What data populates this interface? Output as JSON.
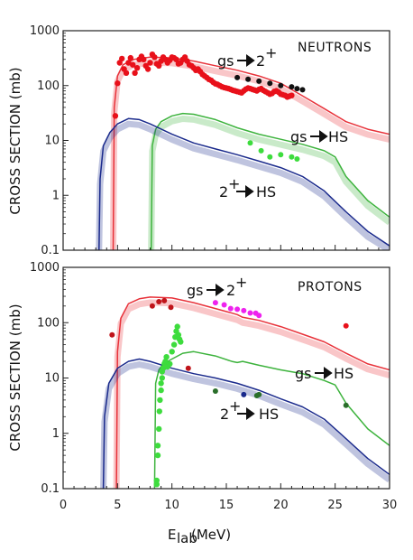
{
  "figure": {
    "ylabel": "CROSS SECTION (mb)",
    "xlabel_main": "E",
    "xlabel_sub": "lab",
    "xlabel_unit": " (MeV)",
    "x_ticks": [
      "0",
      "5",
      "10",
      "15",
      "20",
      "25",
      "30"
    ],
    "y_ticks": [
      "0.1",
      "1",
      "10",
      "100",
      "1000"
    ]
  },
  "chart_data": [
    {
      "type": "line",
      "panel_label": "NEUTRONS",
      "xlim": [
        0,
        30
      ],
      "ylim": [
        0.1,
        1000
      ],
      "yscale": "log",
      "grid": false,
      "annotations": [
        {
          "text": "gs",
          "arrow": true,
          "target": "2",
          "sup": "+",
          "points_to": "gs→2+"
        },
        {
          "text": "gs",
          "arrow": true,
          "target": "HS",
          "sup": "",
          "points_to": "gs→HS"
        },
        {
          "text": "2",
          "arrow": true,
          "target": "HS",
          "sup": "+",
          "points_to": "2+→HS"
        }
      ],
      "series": [
        {
          "key": "gs-2plus-calc",
          "kind": "line",
          "color": "#e8323a",
          "band": true,
          "x": [
            4.6,
            4.7,
            5.0,
            5.5,
            6.5,
            8,
            10,
            12,
            14,
            16,
            18,
            20,
            22,
            24,
            26,
            28,
            30
          ],
          "y": [
            0.1,
            40,
            150,
            240,
            300,
            330,
            320,
            280,
            230,
            190,
            150,
            110,
            65,
            38,
            22,
            16,
            13
          ]
        },
        {
          "key": "gs-hs-calc",
          "kind": "line",
          "color": "#3db33d",
          "band": true,
          "x": [
            8.1,
            8.2,
            8.5,
            9,
            10,
            11,
            12,
            14,
            16,
            18,
            20,
            22,
            24,
            25,
            26,
            28,
            30
          ],
          "y": [
            0.1,
            8,
            16,
            22,
            28,
            31,
            30,
            24,
            17,
            13,
            10.5,
            8.5,
            6.5,
            5,
            2.2,
            0.8,
            0.4
          ]
        },
        {
          "key": "2plus-hs-calc",
          "kind": "line",
          "color": "#1a2a8c",
          "band": true,
          "x": [
            3.3,
            3.4,
            3.7,
            4.3,
            5,
            6,
            7,
            8,
            10,
            12,
            14,
            16,
            18,
            20,
            22,
            24,
            26,
            28,
            30
          ],
          "y": [
            0.1,
            2,
            8,
            14,
            20,
            25,
            24,
            20,
            13,
            9,
            7,
            5.5,
            4.2,
            3.2,
            2.2,
            1.2,
            0.5,
            0.22,
            0.12
          ]
        },
        {
          "key": "gs-2plus-data",
          "kind": "scatter",
          "color": "#e8101a",
          "dense": true,
          "x": [
            4.8,
            5.0,
            5.2,
            5.4,
            5.6,
            5.8,
            6.0,
            6.2,
            6.4,
            6.6,
            6.8,
            7.0,
            7.2,
            7.4,
            7.6,
            7.8,
            8.0,
            8.2,
            8.4,
            8.6,
            8.8,
            9.0,
            9.2,
            9.4,
            9.6,
            9.8,
            10.0,
            10.2,
            10.4,
            10.6,
            10.8,
            11.0,
            11.2,
            11.4,
            11.6,
            11.8,
            12.0,
            12.2,
            12.4,
            12.6,
            12.8,
            13.0,
            13.2,
            13.4,
            13.6,
            13.8,
            14.0,
            14.2,
            14.4,
            14.6,
            14.8,
            15.0,
            15.2,
            15.4,
            15.6,
            15.8,
            16.0,
            16.2,
            16.4,
            16.6,
            16.8,
            17.0,
            17.2,
            17.4,
            17.6,
            17.8,
            18.0,
            18.2,
            18.4,
            18.6,
            18.8,
            19.0,
            19.2,
            19.4,
            19.6,
            19.8,
            20.0,
            20.2,
            20.4,
            20.6,
            20.8,
            21.0
          ],
          "y": [
            28,
            110,
            260,
            310,
            200,
            170,
            260,
            320,
            240,
            170,
            210,
            300,
            340,
            300,
            230,
            200,
            260,
            370,
            330,
            250,
            230,
            280,
            330,
            300,
            260,
            290,
            330,
            320,
            300,
            250,
            260,
            300,
            330,
            280,
            240,
            230,
            210,
            190,
            200,
            180,
            160,
            150,
            140,
            130,
            125,
            115,
            108,
            105,
            100,
            95,
            92,
            90,
            88,
            85,
            82,
            80,
            78,
            76,
            74,
            80,
            86,
            90,
            88,
            85,
            83,
            80,
            85,
            88,
            82,
            78,
            74,
            70,
            72,
            78,
            80,
            76,
            70,
            68,
            66,
            62,
            64,
            66
          ]
        },
        {
          "key": "gs-2plus-data-2",
          "kind": "scatter",
          "color": "#111111",
          "x": [
            16.0,
            17.0,
            18.0,
            19.0,
            20.0,
            21.0,
            21.5,
            22.0
          ],
          "y": [
            140,
            130,
            120,
            110,
            100,
            95,
            88,
            84
          ]
        },
        {
          "key": "gs-hs-data",
          "kind": "scatter",
          "color": "#3ddc3d",
          "x": [
            17.2,
            18.2,
            19.0,
            20.0,
            21.0,
            21.5
          ],
          "y": [
            9,
            6.5,
            5,
            5.5,
            5,
            4.6
          ]
        }
      ]
    },
    {
      "type": "line",
      "panel_label": "PROTONS",
      "xlim": [
        0,
        30
      ],
      "ylim": [
        0.1,
        1000
      ],
      "yscale": "log",
      "grid": false,
      "annotations": [
        {
          "text": "gs",
          "arrow": true,
          "target": "2",
          "sup": "+",
          "points_to": "gs→2+"
        },
        {
          "text": "gs",
          "arrow": true,
          "target": "HS",
          "sup": "",
          "points_to": "gs→HS"
        },
        {
          "text": "2",
          "arrow": true,
          "target": "HS",
          "sup": "+",
          "points_to": "2+→HS"
        }
      ],
      "series": [
        {
          "key": "gs-2plus-calc",
          "kind": "line",
          "color": "#e8323a",
          "band": true,
          "x": [
            4.9,
            5.0,
            5.3,
            6,
            7,
            8,
            10,
            12,
            14,
            16,
            16.5,
            17,
            18,
            20,
            22,
            24,
            26,
            28,
            30
          ],
          "y": [
            0.1,
            30,
            120,
            220,
            270,
            290,
            280,
            230,
            180,
            140,
            125,
            120,
            110,
            85,
            62,
            45,
            28,
            18,
            14
          ]
        },
        {
          "key": "gs-hs-calc",
          "kind": "line",
          "color": "#3db33d",
          "band": false,
          "x": [
            8.4,
            8.5,
            8.8,
            9.2,
            10,
            11,
            12,
            14,
            15.5,
            16,
            16.5,
            18,
            20,
            22,
            24,
            25,
            26,
            28,
            30
          ],
          "y": [
            0.1,
            8,
            14,
            18,
            22,
            28,
            30,
            25,
            20,
            19,
            20,
            17,
            14,
            12,
            9,
            7.5,
            3.5,
            1.2,
            0.6
          ]
        },
        {
          "key": "2plus-hs-calc",
          "kind": "line",
          "color": "#1a2a8c",
          "band": true,
          "x": [
            3.7,
            3.8,
            4.2,
            5,
            6,
            7,
            8,
            10,
            12,
            14,
            16,
            18,
            20,
            22,
            24,
            26,
            28,
            30
          ],
          "y": [
            0.1,
            2,
            8,
            15,
            20,
            22,
            20,
            15,
            12,
            10,
            8,
            6,
            4.2,
            3,
            1.8,
            0.8,
            0.35,
            0.18
          ]
        },
        {
          "key": "gs-2plus-data-a",
          "kind": "scatter",
          "color": "#c0141a",
          "x": [
            4.5,
            8.2,
            8.8,
            9.3,
            9.9,
            11.5
          ],
          "y": [
            60,
            200,
            240,
            250,
            190,
            15
          ]
        },
        {
          "key": "gs-2plus-data-b",
          "kind": "scatter",
          "color": "#e8101a",
          "x": [
            26.0
          ],
          "y": [
            88
          ]
        },
        {
          "key": "gs-2plus-data-c",
          "kind": "scatter",
          "color": "#ee22ee",
          "x": [
            14.0,
            14.8,
            15.4,
            16.0,
            16.6,
            17.2,
            17.7,
            18.0
          ],
          "y": [
            230,
            210,
            180,
            175,
            165,
            150,
            148,
            135
          ]
        },
        {
          "key": "gs-hs-data",
          "kind": "scatter",
          "color": "#3ddc3d",
          "dense": true,
          "x": [
            8.6,
            8.7,
            8.8,
            8.85,
            8.9,
            9.0,
            9.0,
            9.1,
            9.1,
            9.2,
            9.3,
            9.4,
            9.5,
            9.6,
            9.8,
            10.0,
            10.2,
            10.3,
            10.4,
            10.5,
            10.6,
            10.7,
            10.8,
            8.6,
            8.7
          ],
          "y": [
            0.12,
            0.4,
            1.2,
            2.5,
            4,
            6,
            8,
            10,
            13,
            15,
            18,
            20,
            24,
            16,
            18,
            30,
            40,
            55,
            70,
            85,
            60,
            50,
            45,
            0.14,
            0.6
          ]
        },
        {
          "key": "gs-hs-data-2",
          "kind": "scatter",
          "color": "#2a6e2a",
          "x": [
            14.0,
            17.8,
            18.0,
            26.0
          ],
          "y": [
            5.8,
            4.8,
            5.0,
            3.2
          ]
        },
        {
          "key": "2plus-hs-data",
          "kind": "scatter",
          "color": "#1a2a8c",
          "x": [
            16.6
          ],
          "y": [
            5.0
          ]
        }
      ]
    }
  ]
}
